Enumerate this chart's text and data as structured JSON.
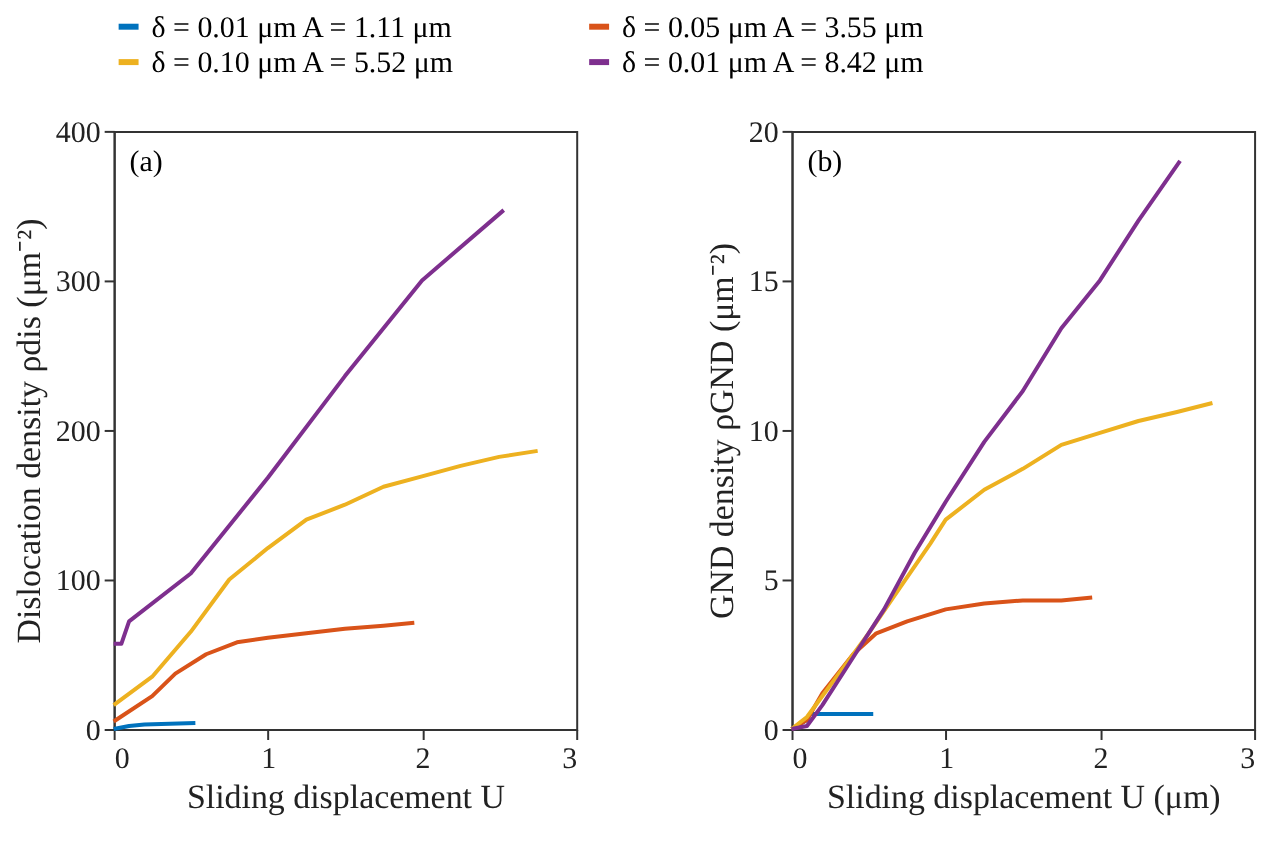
{
  "chart_data": [
    {
      "type": "line",
      "xlabel": "Sliding displacement U",
      "ylabel": "Dislocation density ρdis (μm⁻²)",
      "annotations": [
        "(a)"
      ],
      "xlim": [
        0,
        3
      ],
      "xticks": [
        0,
        1,
        2,
        3
      ],
      "ylim": [
        0,
        400
      ],
      "yticks": [
        0,
        100,
        200,
        300,
        400
      ],
      "legend": "top",
      "grid": false,
      "series": [
        {
          "name": "δ = 0.01 μm A = 1.11 μm",
          "color": "#0072bd",
          "x": [
            0,
            0.1,
            0.2,
            0.53
          ],
          "values": [
            0,
            2,
            3,
            4
          ]
        },
        {
          "name": "δ = 0.05 μm A = 3.55 μm",
          "color": "#d95319",
          "x": [
            0,
            0.25,
            0.4,
            0.6,
            0.8,
            1,
            1.5,
            1.75,
            1.95
          ],
          "values": [
            5,
            22,
            37,
            50,
            58,
            61,
            67,
            69,
            71
          ]
        },
        {
          "name": "δ = 0.10 μm A = 5.52 μm",
          "color": "#edb120",
          "x": [
            0,
            0.25,
            0.5,
            0.75,
            1,
            1.25,
            1.5,
            1.75,
            2,
            2.25,
            2.5,
            2.75
          ],
          "values": [
            16,
            35,
            65,
            100,
            121,
            140,
            150,
            162,
            169,
            176,
            182,
            186
          ]
        },
        {
          "name": "δ = 0.01 μm A = 8.42 μm",
          "color": "#7e2f8e",
          "x": [
            0,
            0.05,
            0.1,
            0.5,
            1,
            1.5,
            2,
            2.53
          ],
          "values": [
            57,
            57,
            72,
            104,
            168,
            236,
            300,
            347
          ]
        }
      ]
    },
    {
      "type": "line",
      "xlabel": "Sliding displacement U (μm)",
      "ylabel": "GND density ρGND (μm⁻²)",
      "annotations": [
        "(b)"
      ],
      "xlim": [
        0,
        3
      ],
      "xticks": [
        0,
        1,
        2,
        3
      ],
      "ylim": [
        0,
        20
      ],
      "yticks": [
        0,
        5,
        10,
        15,
        20
      ],
      "grid": false,
      "series": [
        {
          "name": "δ = 0.01 μm A = 1.11 μm",
          "color": "#0072bd",
          "x": [
            0,
            0.1,
            0.12,
            0.53
          ],
          "values": [
            0,
            0.3,
            0.5,
            0.5
          ]
        },
        {
          "name": "δ = 0.05 μm A = 3.55 μm",
          "color": "#d95319",
          "x": [
            0,
            0.1,
            0.2,
            0.4,
            0.55,
            0.75,
            1,
            1.25,
            1.5,
            1.75,
            1.95
          ],
          "values": [
            0,
            0.3,
            1.2,
            2.5,
            3.2,
            3.6,
            4.0,
            4.2,
            4.3,
            4.3,
            4.4
          ]
        },
        {
          "name": "δ = 0.10 μm A = 5.52 μm",
          "color": "#edb120",
          "x": [
            0,
            0.1,
            0.3,
            0.5,
            0.7,
            0.9,
            1,
            1.25,
            1.5,
            1.75,
            2,
            2.25,
            2.5,
            2.73
          ],
          "values": [
            0,
            0.4,
            1.8,
            3.2,
            4.7,
            6.2,
            7.0,
            8.0,
            8.7,
            9.5,
            9.9,
            10.3,
            10.6,
            10.9
          ]
        },
        {
          "name": "δ = 0.01 μm A = 8.42 μm",
          "color": "#7e2f8e",
          "x": [
            0,
            0.1,
            0.2,
            0.4,
            0.6,
            0.8,
            1,
            1.25,
            1.5,
            1.75,
            2,
            2.25,
            2.52
          ],
          "values": [
            0,
            0.1,
            0.8,
            2.4,
            4.0,
            5.9,
            7.6,
            9.6,
            11.3,
            13.4,
            15.0,
            17.0,
            19.0
          ]
        }
      ]
    }
  ]
}
